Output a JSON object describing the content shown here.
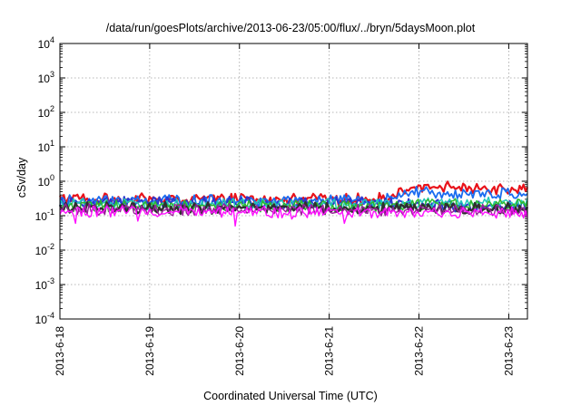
{
  "chart_data": {
    "type": "line",
    "title": "/data/run/goesPlots/archive/2013-06-23/05:00/flux/../bryn/5daysMoon.plot",
    "xlabel": "Coordinated Universal Time (UTC)",
    "ylabel": "cSv/day",
    "y_scale": "log",
    "ylim": [
      0.0001,
      10000
    ],
    "xlim": [
      "2013-06-18",
      "2013-06-23 05:00"
    ],
    "x_ticks": [
      "2013-6-18",
      "2013-6-19",
      "2013-6-20",
      "2013-6-21",
      "2013-6-22",
      "2013-6-23"
    ],
    "y_ticks": [
      {
        "value": 0.0001,
        "base": "10",
        "exp": "-4"
      },
      {
        "value": 0.001,
        "base": "10",
        "exp": "-3"
      },
      {
        "value": 0.01,
        "base": "10",
        "exp": "-2"
      },
      {
        "value": 0.1,
        "base": "10",
        "exp": "-1"
      },
      {
        "value": 1,
        "base": "10",
        "exp": "0"
      },
      {
        "value": 10,
        "base": "10",
        "exp": "1"
      },
      {
        "value": 100,
        "base": "10",
        "exp": "2"
      },
      {
        "value": 1000,
        "base": "10",
        "exp": "3"
      },
      {
        "value": 10000,
        "base": "10",
        "exp": "4"
      }
    ],
    "grid": true,
    "legend": "none",
    "series": [
      {
        "color": "#e8121a",
        "width": 2.2,
        "profile": [
          [
            "2013-06-18",
            0.3
          ],
          [
            "2013-06-21 12:00",
            0.3
          ],
          [
            "2013-06-21 18:00",
            0.4
          ],
          [
            "2013-06-22",
            0.7
          ],
          [
            "2013-06-22 18:00",
            0.62
          ],
          [
            "2013-06-23 05:00",
            0.58
          ]
        ]
      },
      {
        "color": "#1a6cf0",
        "width": 1.8,
        "profile": [
          [
            "2013-06-18",
            0.27
          ],
          [
            "2013-06-21 12:00",
            0.27
          ],
          [
            "2013-06-21 18:00",
            0.32
          ],
          [
            "2013-06-22",
            0.5
          ],
          [
            "2013-06-22 18:00",
            0.45
          ],
          [
            "2013-06-23 05:00",
            0.42
          ]
        ]
      },
      {
        "color": "#2a35d0",
        "width": 2.0,
        "profile": [
          [
            "2013-06-18",
            0.24
          ],
          [
            "2013-06-21 12:00",
            0.24
          ],
          [
            "2013-06-22",
            0.2
          ],
          [
            "2013-06-23 05:00",
            0.18
          ]
        ]
      },
      {
        "color": "#20c8b8",
        "width": 1.5,
        "profile": [
          [
            "2013-06-18",
            0.21
          ],
          [
            "2013-06-21 12:00",
            0.21
          ],
          [
            "2013-06-22",
            0.24
          ],
          [
            "2013-06-23 05:00",
            0.23
          ]
        ]
      },
      {
        "color": "#2db82d",
        "width": 1.5,
        "profile": [
          [
            "2013-06-18",
            0.19
          ],
          [
            "2013-06-21 12:00",
            0.19
          ],
          [
            "2013-06-22",
            0.22
          ],
          [
            "2013-06-23 05:00",
            0.21
          ]
        ]
      },
      {
        "color": "#303030",
        "width": 2.4,
        "profile": [
          [
            "2013-06-18",
            0.17
          ],
          [
            "2013-06-23 05:00",
            0.16
          ]
        ]
      },
      {
        "color": "#9a1f9a",
        "width": 1.4,
        "profile": [
          [
            "2013-06-18",
            0.15
          ],
          [
            "2013-06-23 05:00",
            0.145
          ]
        ]
      },
      {
        "color": "#ff10ff",
        "width": 1.4,
        "profile": [
          [
            "2013-06-18",
            0.13
          ],
          [
            "2013-06-23 05:00",
            0.125
          ]
        ],
        "dips": [
          [
            "2013-06-18 04:00",
            0.06
          ],
          [
            "2013-06-18 21:00",
            0.07
          ],
          [
            "2013-06-19 23:00",
            0.05
          ],
          [
            "2013-06-20 14:00",
            0.08
          ],
          [
            "2013-06-21 04:00",
            0.06
          ],
          [
            "2013-06-22 06:00",
            0.09
          ]
        ]
      }
    ]
  }
}
